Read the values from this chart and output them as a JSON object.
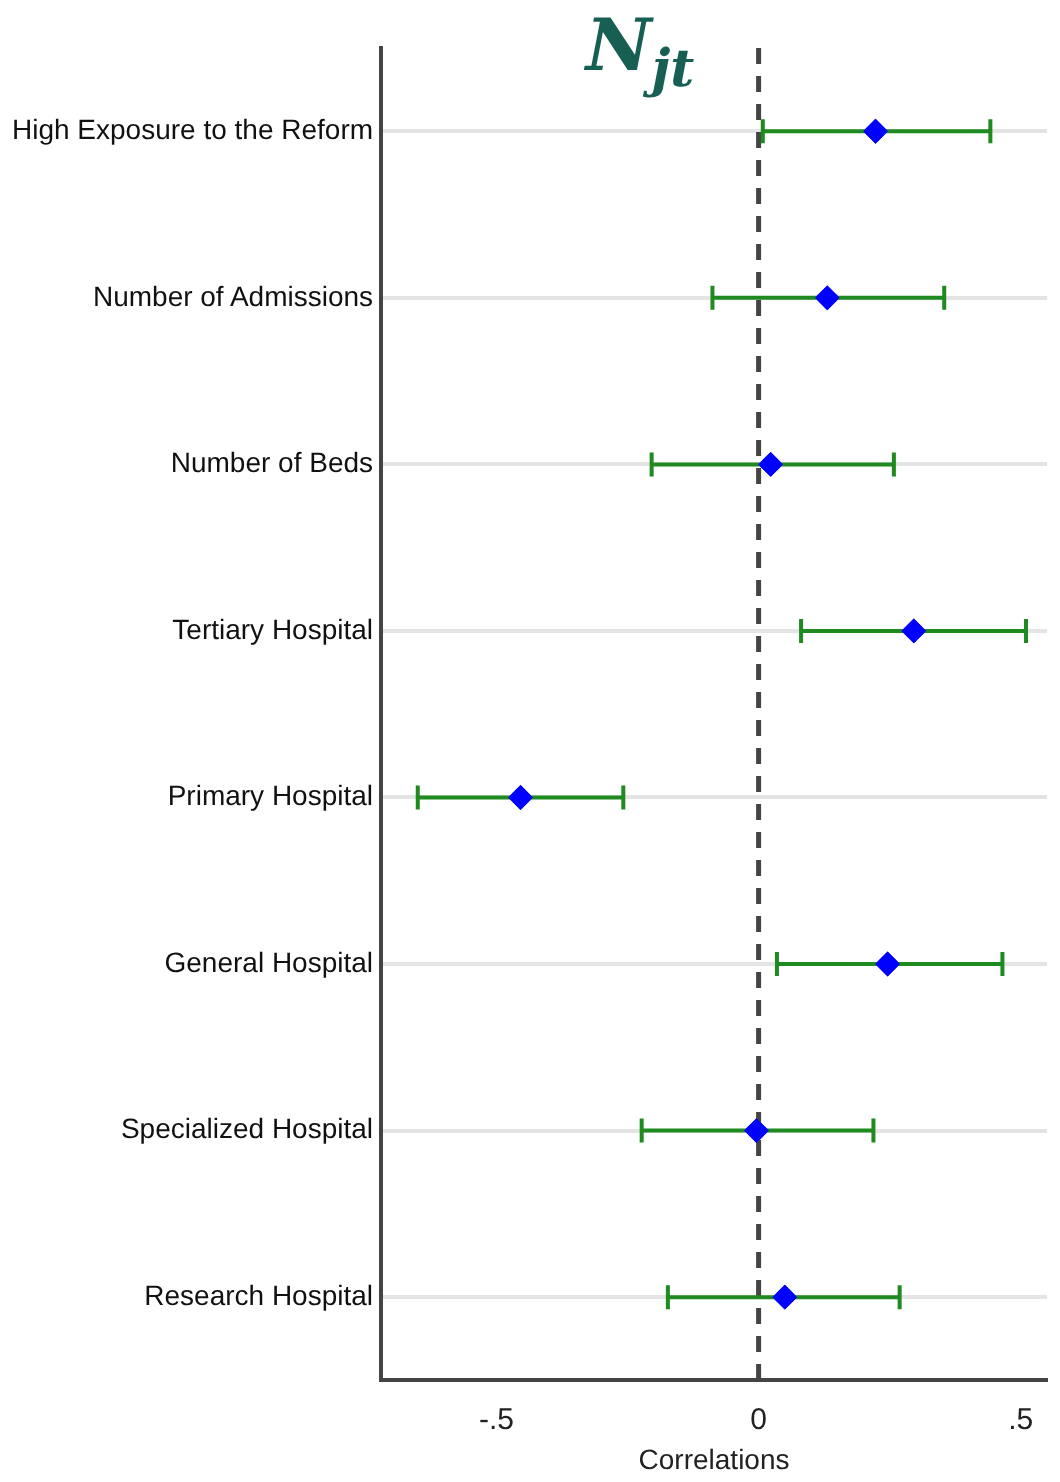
{
  "chart_data": {
    "type": "scatter",
    "orientation": "horizontal",
    "title": "N$_{jt}$",
    "xlabel": "Correlations",
    "categories": [
      "High Exposure to the Reform",
      "Number of Admissions",
      "Number of Beds",
      "Tertiary Hospital",
      "Primary Hospital",
      "General Hospital",
      "Specialized Hospital",
      "Research Hospital"
    ],
    "values": [
      0.223,
      0.131,
      0.023,
      0.296,
      -0.454,
      0.246,
      -0.004,
      0.05
    ],
    "errors": [
      [
        0.008,
        0.442
      ],
      [
        -0.088,
        0.354
      ],
      [
        -0.204,
        0.258
      ],
      [
        0.081,
        0.51
      ],
      [
        -0.65,
        -0.258
      ],
      [
        0.035,
        0.465
      ],
      [
        -0.223,
        0.219
      ],
      [
        -0.173,
        0.269
      ]
    ],
    "color": "#0000ff",
    "marker": "diamond",
    "xlim": [
      -0.72,
      0.55
    ],
    "xticks": [
      {
        "value": -0.5,
        "label": "-.5"
      },
      0,
      {
        "value": 0.5,
        "label": ".5"
      }
    ],
    "ref_lines": [
      {
        "axis": "x",
        "value": 0,
        "line_style": "dashed"
      }
    ],
    "grid": "y",
    "legend": false
  }
}
